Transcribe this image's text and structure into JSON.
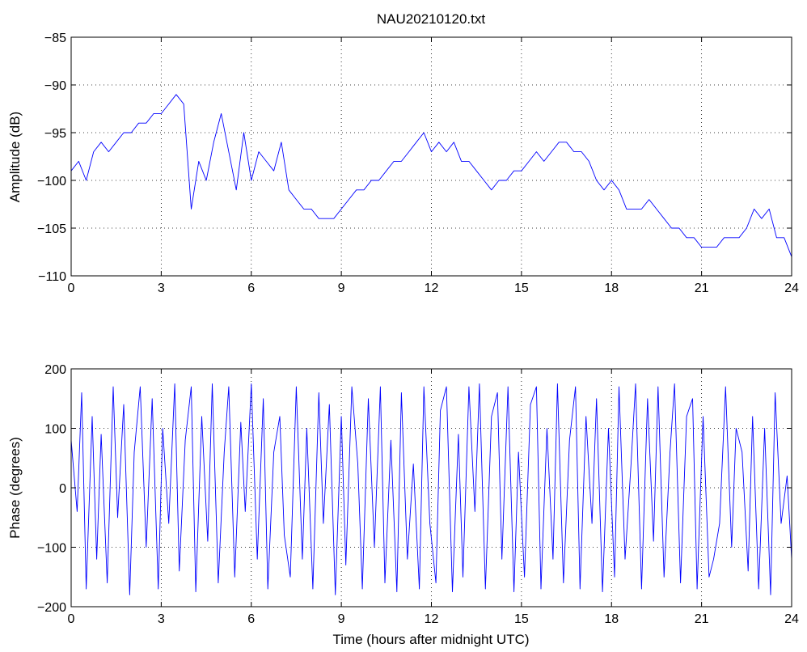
{
  "chart_data": [
    {
      "type": "line",
      "title": "NAU20210120.txt",
      "xlabel": "",
      "ylabel": "Amplitude (dB)",
      "xlim": [
        0,
        24
      ],
      "ylim": [
        -110,
        -85
      ],
      "xticks": [
        0,
        3,
        6,
        9,
        12,
        15,
        18,
        21,
        24
      ],
      "xtick_labels": [
        "0",
        "3",
        "6",
        "9",
        "12",
        "15",
        "18",
        "21",
        "24"
      ],
      "yticks": [
        -110,
        -105,
        -100,
        -95,
        -90,
        -85
      ],
      "ytick_labels": [
        "−110",
        "−105",
        "−100",
        "−95",
        "−90",
        "−85"
      ],
      "grid": true,
      "series": [
        {
          "color": "#0000ff",
          "x": [
            0,
            0.25,
            0.5,
            0.75,
            1.0,
            1.25,
            1.5,
            1.75,
            2.0,
            2.25,
            2.5,
            2.75,
            3.0,
            3.25,
            3.5,
            3.75,
            4.0,
            4.25,
            4.5,
            4.75,
            5.0,
            5.25,
            5.5,
            5.75,
            6.0,
            6.25,
            6.5,
            6.75,
            7.0,
            7.25,
            7.5,
            7.75,
            8.0,
            8.25,
            8.5,
            8.75,
            9.0,
            9.25,
            9.5,
            9.75,
            10.0,
            10.25,
            10.5,
            10.75,
            11.0,
            11.25,
            11.5,
            11.75,
            12.0,
            12.25,
            12.5,
            12.75,
            13.0,
            13.25,
            13.5,
            13.75,
            14.0,
            14.25,
            14.5,
            14.75,
            15.0,
            15.25,
            15.5,
            15.75,
            16.0,
            16.25,
            16.5,
            16.75,
            17.0,
            17.25,
            17.5,
            17.75,
            18.0,
            18.25,
            18.5,
            18.75,
            19.0,
            19.25,
            19.5,
            19.75,
            20.0,
            20.25,
            20.5,
            20.75,
            21.0,
            21.25,
            21.5,
            21.75,
            22.0,
            22.25,
            22.5,
            22.75,
            23.0,
            23.25,
            23.5,
            23.75,
            24.0
          ],
          "y": [
            -99,
            -98,
            -100,
            -97,
            -96,
            -97,
            -96,
            -95,
            -95,
            -94,
            -94,
            -93,
            -93,
            -92,
            -91,
            -92,
            -103,
            -98,
            -100,
            -96,
            -93,
            -97,
            -101,
            -95,
            -100,
            -97,
            -98,
            -99,
            -96,
            -101,
            -102,
            -103,
            -103,
            -104,
            -104,
            -104,
            -103,
            -102,
            -101,
            -101,
            -100,
            -100,
            -99,
            -98,
            -98,
            -97,
            -96,
            -95,
            -97,
            -96,
            -97,
            -96,
            -98,
            -98,
            -99,
            -100,
            -101,
            -100,
            -100,
            -99,
            -99,
            -98,
            -97,
            -98,
            -97,
            -96,
            -96,
            -97,
            -97,
            -98,
            -100,
            -101,
            -100,
            -101,
            -103,
            -103,
            -103,
            -102,
            -103,
            -104,
            -105,
            -105,
            -106,
            -106,
            -107,
            -107,
            -107,
            -106,
            -106,
            -106,
            -105,
            -103,
            -104,
            -103,
            -106,
            -106,
            -108
          ]
        }
      ]
    },
    {
      "type": "line",
      "title": "",
      "xlabel": "Time (hours after midnight UTC)",
      "ylabel": "Phase (degrees)",
      "xlim": [
        0,
        24
      ],
      "ylim": [
        -200,
        200
      ],
      "xticks": [
        0,
        3,
        6,
        9,
        12,
        15,
        18,
        21,
        24
      ],
      "xtick_labels": [
        "0",
        "3",
        "6",
        "9",
        "12",
        "15",
        "18",
        "21",
        "24"
      ],
      "yticks": [
        -200,
        -100,
        0,
        100,
        200
      ],
      "ytick_labels": [
        "−200",
        "−100",
        "0",
        "100",
        "200"
      ],
      "grid": true,
      "series": [
        {
          "color": "#0000ff",
          "x": [
            0,
            0.2,
            0.35,
            0.5,
            0.7,
            0.85,
            1.0,
            1.2,
            1.4,
            1.55,
            1.75,
            1.95,
            2.1,
            2.3,
            2.5,
            2.7,
            2.9,
            3.05,
            3.25,
            3.45,
            3.6,
            3.8,
            4.0,
            4.15,
            4.35,
            4.55,
            4.7,
            4.9,
            5.1,
            5.25,
            5.45,
            5.65,
            5.8,
            6.0,
            6.2,
            6.4,
            6.55,
            6.75,
            6.95,
            7.1,
            7.3,
            7.5,
            7.7,
            7.85,
            8.05,
            8.25,
            8.4,
            8.6,
            8.8,
            9.0,
            9.15,
            9.35,
            9.55,
            9.7,
            9.9,
            10.1,
            10.3,
            10.45,
            10.65,
            10.85,
            11.0,
            11.2,
            11.4,
            11.6,
            11.75,
            11.95,
            12.15,
            12.3,
            12.5,
            12.7,
            12.9,
            13.05,
            13.25,
            13.45,
            13.6,
            13.8,
            14.0,
            14.2,
            14.35,
            14.55,
            14.75,
            14.9,
            15.1,
            15.3,
            15.5,
            15.65,
            15.85,
            16.05,
            16.2,
            16.4,
            16.6,
            16.8,
            16.95,
            17.15,
            17.35,
            17.5,
            17.7,
            17.9,
            18.1,
            18.25,
            18.45,
            18.65,
            18.8,
            19.0,
            19.2,
            19.4,
            19.55,
            19.75,
            19.95,
            20.1,
            20.3,
            20.5,
            20.7,
            20.85,
            21.05,
            21.25,
            21.4,
            21.6,
            21.8,
            22.0,
            22.15,
            22.35,
            22.55,
            22.7,
            22.9,
            23.1,
            23.3,
            23.45,
            23.65,
            23.85,
            24.0
          ],
          "y": [
            80,
            -40,
            160,
            -170,
            120,
            -120,
            90,
            -160,
            170,
            -50,
            140,
            -180,
            60,
            170,
            -100,
            150,
            -170,
            100,
            -60,
            175,
            -140,
            80,
            170,
            -175,
            120,
            -90,
            175,
            -160,
            60,
            170,
            -150,
            110,
            -40,
            175,
            -120,
            150,
            -170,
            60,
            120,
            -80,
            -150,
            170,
            -120,
            100,
            -170,
            160,
            -60,
            140,
            -180,
            120,
            -130,
            170,
            40,
            -170,
            150,
            -100,
            170,
            -160,
            80,
            -175,
            160,
            -120,
            40,
            -170,
            170,
            -60,
            -160,
            130,
            170,
            -175,
            90,
            -150,
            170,
            -40,
            175,
            -170,
            120,
            160,
            -120,
            170,
            -175,
            60,
            -150,
            140,
            170,
            -170,
            100,
            -120,
            175,
            -160,
            80,
            170,
            -170,
            120,
            -60,
            150,
            -175,
            100,
            -150,
            170,
            -120,
            40,
            175,
            -170,
            150,
            -90,
            170,
            -150,
            60,
            175,
            -160,
            120,
            150,
            -170,
            120,
            -150,
            -120,
            -60,
            170,
            -100,
            100,
            60,
            -140,
            120,
            -170,
            100,
            -180,
            160,
            -60,
            20,
            -120
          ]
        }
      ]
    }
  ]
}
